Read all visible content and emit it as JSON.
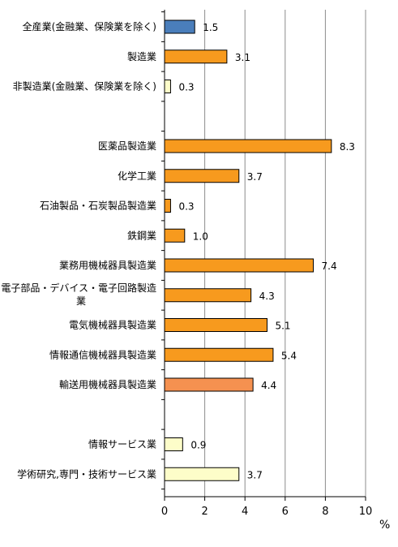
{
  "chart_data": {
    "type": "bar",
    "orientation": "horizontal",
    "categories": [
      "全産業(金融業、保険業を除く)",
      "製造業",
      "非製造業(金融業、保険業を除く)",
      "",
      "医薬品製造業",
      "化学工業",
      "石油製品・石炭製品製造業",
      "鉄鋼業",
      "業務用機械器具製造業",
      "電子部品・デバイス・電子回路製造業",
      "電気機械器具製造業",
      "情報通信機械器具製造業",
      "輸送用機械器具製造業",
      "",
      "情報サービス業",
      "学術研究,専門・技術サービス業"
    ],
    "category_label_lines": [
      [
        "全産業(金融業、保険業を除く)"
      ],
      [
        "製造業"
      ],
      [
        "非製造業(金融業、保険業を除く)"
      ],
      [],
      [
        "医薬品製造業"
      ],
      [
        "化学工業"
      ],
      [
        "石油製品・石炭製品製造業"
      ],
      [
        "鉄鋼業"
      ],
      [
        "業務用機械器具製造業"
      ],
      [
        "電子部品・デバイス・電子回路製造",
        "業"
      ],
      [
        "電気機械器具製造業"
      ],
      [
        "情報通信機械器具製造業"
      ],
      [
        "輸送用機械器具製造業"
      ],
      [],
      [
        "情報サービス業"
      ],
      [
        "学術研究,専門・技術サービス業"
      ]
    ],
    "values": [
      1.5,
      3.1,
      0.3,
      null,
      8.3,
      3.7,
      0.3,
      1.0,
      7.4,
      4.3,
      5.1,
      5.4,
      4.4,
      null,
      0.9,
      3.7
    ],
    "value_labels": [
      "1.5",
      "3.1",
      "0.3",
      "",
      "8.3",
      "3.7",
      "0.3",
      "1.0",
      "7.4",
      "4.3",
      "5.1",
      "5.4",
      "4.4",
      "",
      "0.9",
      "3.7"
    ],
    "bar_colors": [
      "#4a7ebb",
      "#f79a1e",
      "#fdfdc9",
      null,
      "#f79a1e",
      "#f79a1e",
      "#f79a1e",
      "#f79a1e",
      "#f79a1e",
      "#f79a1e",
      "#f79a1e",
      "#f79a1e",
      "#f59150",
      null,
      "#fdfdc9",
      "#fdfdc9"
    ],
    "xlim": [
      0,
      10
    ],
    "x_ticks": [
      "0",
      "2",
      "4",
      "6",
      "8",
      "10"
    ],
    "x_unit": "%",
    "grid": true,
    "legend": "none"
  }
}
